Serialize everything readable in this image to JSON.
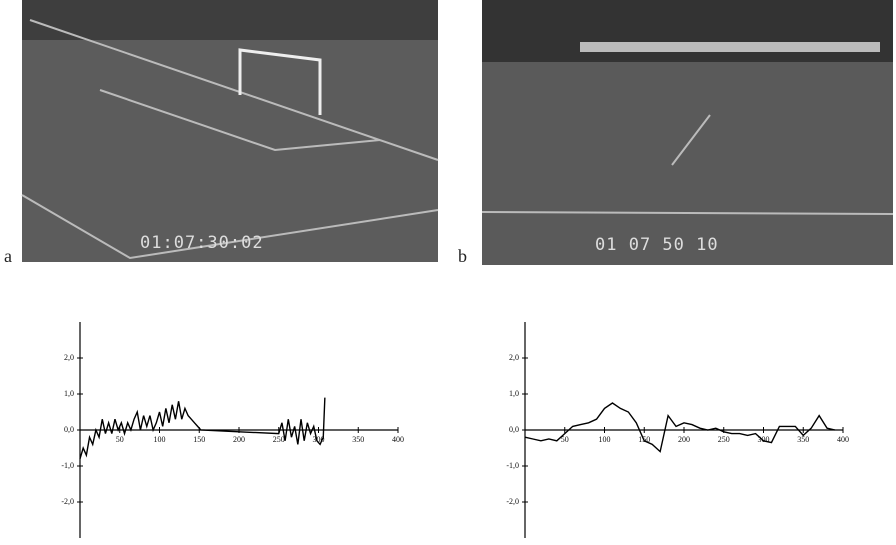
{
  "figure": {
    "panels": [
      {
        "label": "a",
        "timecode": "01:07:30:02"
      },
      {
        "label": "b",
        "timecode": "01 07 50 10"
      }
    ]
  },
  "chart_data": [
    {
      "type": "line",
      "x": [
        0,
        4,
        8,
        12,
        16,
        20,
        24,
        28,
        32,
        36,
        40,
        44,
        48,
        52,
        56,
        60,
        64,
        68,
        72,
        76,
        80,
        84,
        88,
        92,
        96,
        100,
        104,
        108,
        112,
        116,
        120,
        124,
        128,
        132,
        136,
        140,
        144,
        148,
        152,
        200,
        250,
        254,
        258,
        262,
        266,
        270,
        274,
        278,
        282,
        286,
        290,
        294,
        298,
        302,
        306,
        308
      ],
      "series": [
        {
          "color": "#000000",
          "values": [
            -0.8,
            -0.5,
            -0.7,
            -0.2,
            -0.4,
            0.0,
            -0.2,
            0.3,
            -0.1,
            0.2,
            -0.1,
            0.3,
            0.0,
            0.2,
            -0.1,
            0.2,
            0.0,
            0.3,
            0.5,
            0.0,
            0.4,
            0.1,
            0.4,
            0.0,
            0.2,
            0.5,
            0.1,
            0.6,
            0.2,
            0.7,
            0.3,
            0.8,
            0.3,
            0.6,
            0.4,
            0.3,
            0.2,
            0.1,
            0.0,
            -0.05,
            -0.1,
            0.2,
            -0.3,
            0.3,
            -0.2,
            0.1,
            -0.4,
            0.3,
            -0.3,
            0.2,
            -0.1,
            0.1,
            -0.3,
            -0.4,
            -0.2,
            0.9
          ]
        }
      ],
      "xlim": [
        0,
        400
      ],
      "xticks": [
        50,
        100,
        150,
        200,
        250,
        300,
        350,
        400
      ],
      "ylim": [
        -3,
        3
      ],
      "yticks": [
        {
          "value": 2,
          "label": "2,0"
        },
        {
          "value": 1,
          "label": "1,0"
        },
        {
          "value": 0,
          "label": "0,0"
        },
        {
          "value": -1,
          "label": "-1,0"
        },
        {
          "value": -2,
          "label": "-2,0"
        }
      ]
    },
    {
      "type": "line",
      "x": [
        0,
        10,
        20,
        30,
        40,
        50,
        60,
        70,
        80,
        90,
        100,
        110,
        120,
        130,
        140,
        150,
        160,
        170,
        180,
        190,
        200,
        210,
        220,
        230,
        240,
        250,
        260,
        270,
        280,
        290,
        300,
        310,
        320,
        330,
        340,
        350,
        360,
        370,
        380,
        390
      ],
      "series": [
        {
          "color": "#000000",
          "values": [
            -0.2,
            -0.25,
            -0.3,
            -0.25,
            -0.3,
            -0.1,
            0.1,
            0.15,
            0.2,
            0.3,
            0.6,
            0.75,
            0.6,
            0.5,
            0.2,
            -0.3,
            -0.4,
            -0.6,
            0.4,
            0.1,
            0.2,
            0.15,
            0.05,
            0.0,
            0.05,
            -0.05,
            -0.1,
            -0.1,
            -0.15,
            -0.1,
            -0.3,
            -0.35,
            0.1,
            0.1,
            0.1,
            -0.15,
            0.05,
            0.4,
            0.05,
            0.0
          ]
        }
      ],
      "xlim": [
        0,
        400
      ],
      "xticks": [
        50,
        100,
        150,
        200,
        250,
        300,
        350,
        400
      ],
      "ylim": [
        -3,
        3
      ],
      "yticks": [
        {
          "value": 2,
          "label": "2,0"
        },
        {
          "value": 1,
          "label": "1,0"
        },
        {
          "value": 0,
          "label": "0,0"
        },
        {
          "value": -1,
          "label": "-1,0"
        },
        {
          "value": -2,
          "label": "-2,0"
        }
      ]
    }
  ]
}
